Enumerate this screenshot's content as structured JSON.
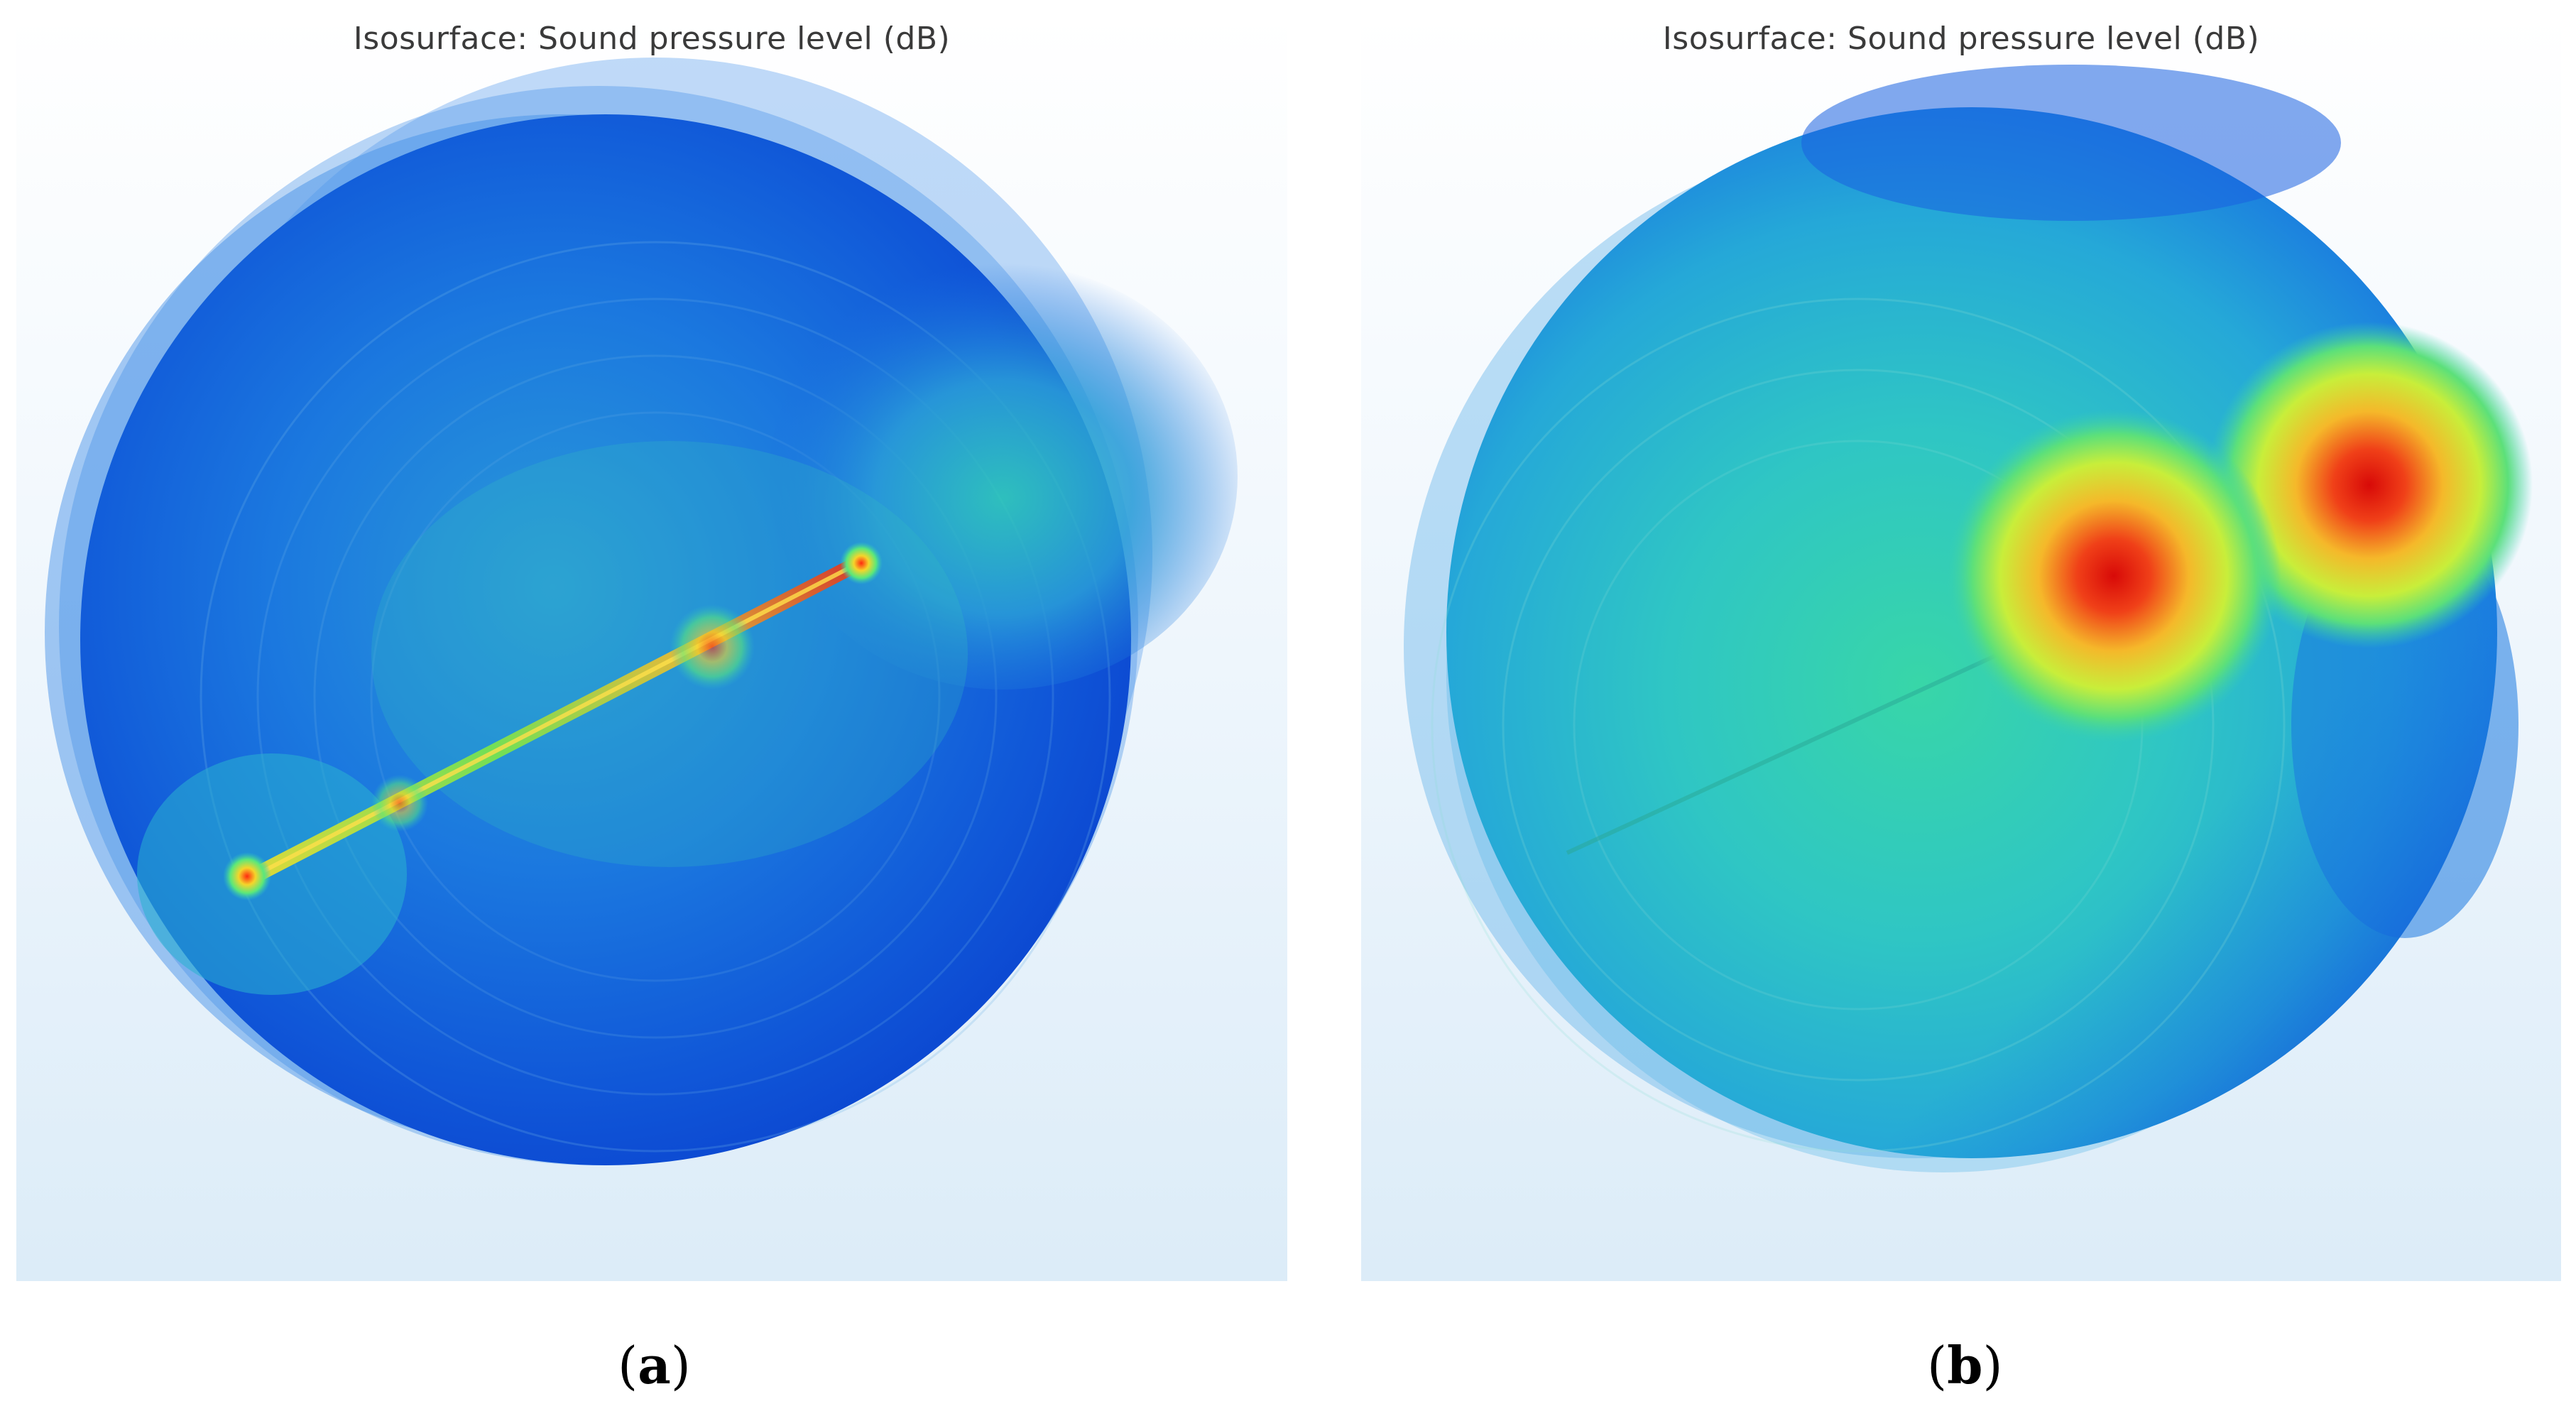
{
  "panels": [
    {
      "id": "a",
      "title": "Isosurface: Sound pressure level (dB)",
      "caption_letter": "a",
      "colormap": [
        "#0a3fd0",
        "#1f6fe0",
        "#2fb0d6",
        "#33d2b0",
        "#7be84a",
        "#f2e12a",
        "#f08a1a",
        "#e01a10"
      ]
    },
    {
      "id": "b",
      "title": "Isosurface: Sound pressure level (dB)",
      "caption_letter": "b",
      "colormap": [
        "#0a2fd0",
        "#1f8fe0",
        "#2dd0c8",
        "#3be08a",
        "#b8ec3c",
        "#f5d82a",
        "#f2801a",
        "#e0100c"
      ]
    }
  ]
}
